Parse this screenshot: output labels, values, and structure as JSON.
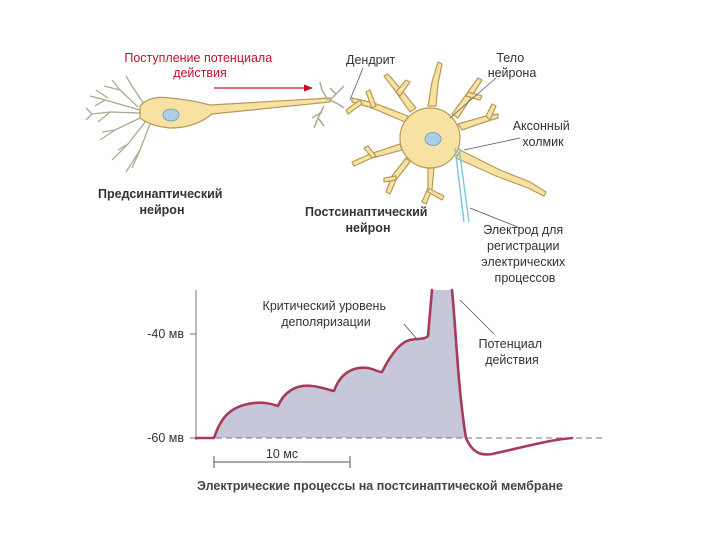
{
  "diagram": {
    "labels": {
      "incoming_ap": [
        "Поступление потенциала",
        "действия"
      ],
      "dendrite": "Дендрит",
      "soma": [
        "Тело",
        "нейрона"
      ],
      "axon_hillock": [
        "Аксонный",
        "холмик"
      ],
      "presynaptic": [
        "Предсинаптический",
        "нейрон"
      ],
      "postsynaptic": [
        "Постсинаптический",
        "нейрон"
      ],
      "electrode": [
        "Электрод для",
        "регистрации",
        "электрических",
        "процессов"
      ]
    },
    "graph": {
      "y_ticks": [
        "-40 мв",
        "-60 мв"
      ],
      "threshold": [
        "Критический уровень",
        "деполяризации"
      ],
      "action_potential": [
        "Потенциал",
        "действия"
      ],
      "scale": "10 мс",
      "caption": "Электрические процессы на постсинаптической мембране"
    },
    "colors": {
      "neuron_fill": "#f7e1a3",
      "neuron_stroke": "#b89a58",
      "nucleus": "#a9cfe6",
      "trace": "#a83a5a",
      "trace_fill": "#c6c8d9",
      "label_red": "#c8102e",
      "electrode": "#7fc6d8"
    }
  }
}
